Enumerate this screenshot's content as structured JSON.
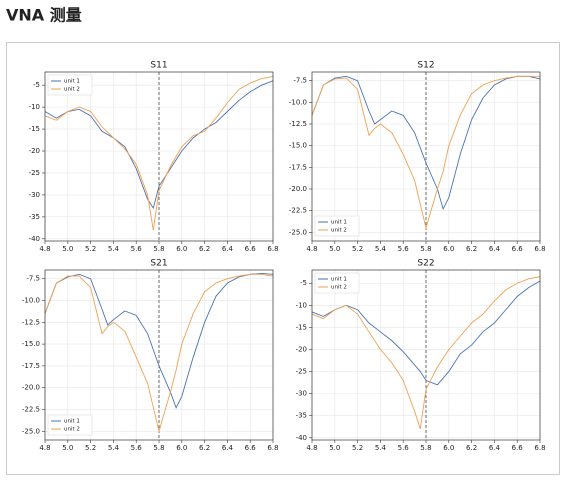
{
  "title": "VNA 测量",
  "chart_data": [
    {
      "type": "line",
      "title": "S11",
      "legend": "upper left",
      "grid": true,
      "vline": 5.8,
      "xlim": [
        4.8,
        6.8
      ],
      "ylim": [
        -40.5,
        -2
      ],
      "xticks": [
        4.8,
        {
          "value": 5,
          "label": "5.0"
        },
        5.2,
        5.4,
        5.6,
        5.8,
        {
          "value": 6,
          "label": "6.0"
        },
        6.2,
        6.4,
        6.6,
        6.8
      ],
      "yticks": [
        -5,
        -10,
        -15,
        -20,
        -25,
        -30,
        -35,
        -40
      ],
      "x": [
        4.8,
        4.9,
        5.0,
        5.1,
        5.2,
        5.3,
        5.4,
        5.5,
        5.6,
        5.7,
        5.75,
        5.8,
        5.9,
        6.0,
        6.1,
        6.2,
        6.3,
        6.4,
        6.5,
        6.6,
        6.7,
        6.8
      ],
      "series": [
        {
          "name": "unit 1",
          "color": "#4c72b0",
          "values": [
            -11,
            -12.5,
            -11,
            -10.5,
            -12,
            -15.5,
            -17,
            -19,
            -24,
            -31,
            -33,
            -28,
            -24,
            -20,
            -17,
            -15,
            -13.5,
            -11,
            -8.5,
            -6.5,
            -5,
            -4
          ]
        },
        {
          "name": "unit 2",
          "color": "#f0a050",
          "values": [
            -12,
            -13,
            -11,
            -10,
            -11,
            -14.5,
            -17,
            -19.5,
            -23,
            -30,
            -38,
            -29,
            -23.5,
            -19,
            -16.5,
            -15.5,
            -12.5,
            -9,
            -6,
            -4.5,
            -3.5,
            -3
          ]
        }
      ]
    },
    {
      "type": "line",
      "title": "S12",
      "legend": "lower left",
      "grid": true,
      "vline": 5.8,
      "xlim": [
        4.8,
        6.8
      ],
      "ylim": [
        -26,
        -6.5
      ],
      "xticks": [
        4.8,
        {
          "value": 5,
          "label": "5.0"
        },
        5.2,
        5.4,
        5.6,
        5.8,
        {
          "value": 6,
          "label": "6.0"
        },
        6.2,
        6.4,
        6.6,
        6.8
      ],
      "yticks": [
        -7.5,
        {
          "value": -10,
          "label": "-10.0"
        },
        -12.5,
        {
          "value": -15,
          "label": "-15.0"
        },
        -17.5,
        {
          "value": -20,
          "label": "-20.0"
        },
        -22.5,
        {
          "value": -25,
          "label": "-25.0"
        }
      ],
      "x": [
        4.8,
        4.9,
        5.0,
        5.1,
        5.2,
        5.3,
        5.35,
        5.4,
        5.5,
        5.6,
        5.7,
        5.8,
        5.9,
        5.95,
        6.0,
        6.1,
        6.2,
        6.3,
        6.4,
        6.5,
        6.6,
        6.7,
        6.8
      ],
      "series": [
        {
          "name": "unit 1",
          "color": "#4c72b0",
          "values": [
            -11.5,
            -8,
            -7.2,
            -7,
            -7.5,
            -11,
            -12.5,
            -12,
            -11,
            -11.5,
            -13.5,
            -17,
            -20,
            -22.3,
            -21,
            -16,
            -12,
            -9.5,
            -8,
            -7.3,
            -7,
            -7,
            -7.3
          ]
        },
        {
          "name": "unit 2",
          "color": "#f0a050",
          "values": [
            -11.5,
            -8,
            -7.3,
            -7.2,
            -8.5,
            -13.8,
            -13,
            -12.5,
            -13.5,
            -16,
            -19,
            -24.5,
            -20,
            -18,
            -15,
            -11.5,
            -9,
            -8,
            -7.5,
            -7.2,
            -7,
            -7,
            -7
          ]
        }
      ]
    },
    {
      "type": "line",
      "title": "S21",
      "legend": "lower left",
      "grid": true,
      "vline": 5.8,
      "xlim": [
        4.8,
        6.8
      ],
      "ylim": [
        -26,
        -6.5
      ],
      "xticks": [
        4.8,
        {
          "value": 5,
          "label": "5.0"
        },
        5.2,
        5.4,
        5.6,
        5.8,
        {
          "value": 6,
          "label": "6.0"
        },
        6.2,
        6.4,
        6.6,
        6.8
      ],
      "yticks": [
        -7.5,
        {
          "value": -10,
          "label": "-10.0"
        },
        -12.5,
        {
          "value": -15,
          "label": "-15.0"
        },
        -17.5,
        {
          "value": -20,
          "label": "-20.0"
        },
        -22.5,
        {
          "value": -25,
          "label": "-25.0"
        }
      ],
      "x": [
        4.8,
        4.9,
        5.0,
        5.1,
        5.2,
        5.3,
        5.35,
        5.4,
        5.5,
        5.6,
        5.7,
        5.8,
        5.9,
        5.95,
        6.0,
        6.1,
        6.2,
        6.3,
        6.4,
        6.5,
        6.6,
        6.7,
        6.8
      ],
      "series": [
        {
          "name": "unit 1",
          "color": "#4c72b0",
          "values": [
            -11.5,
            -8,
            -7.3,
            -7,
            -7.5,
            -11,
            -12.8,
            -12.2,
            -11.2,
            -11.7,
            -13.8,
            -17.5,
            -20.5,
            -22.3,
            -21,
            -16.5,
            -12.5,
            -9.5,
            -8,
            -7.3,
            -7,
            -6.9,
            -7
          ]
        },
        {
          "name": "unit 2",
          "color": "#f0a050",
          "values": [
            -11.5,
            -8,
            -7.2,
            -7.2,
            -8.5,
            -13.8,
            -13,
            -12.5,
            -13.5,
            -16.5,
            -19.5,
            -25,
            -20.5,
            -18,
            -15,
            -11.5,
            -9,
            -8,
            -7.5,
            -7.2,
            -7,
            -7,
            -7.2
          ]
        }
      ]
    },
    {
      "type": "line",
      "title": "S22",
      "legend": "upper left",
      "grid": true,
      "vline": 5.8,
      "xlim": [
        4.8,
        6.8
      ],
      "ylim": [
        -40.5,
        -2
      ],
      "xticks": [
        4.8,
        {
          "value": 5,
          "label": "5.0"
        },
        5.2,
        5.4,
        5.6,
        5.8,
        {
          "value": 6,
          "label": "6.0"
        },
        6.2,
        6.4,
        6.6,
        6.8
      ],
      "yticks": [
        -5,
        -10,
        -15,
        -20,
        -25,
        -30,
        -35,
        -40
      ],
      "x": [
        4.8,
        4.9,
        5.0,
        5.1,
        5.2,
        5.3,
        5.4,
        5.5,
        5.6,
        5.7,
        5.75,
        5.8,
        5.9,
        6.0,
        6.1,
        6.2,
        6.3,
        6.4,
        6.5,
        6.6,
        6.7,
        6.8
      ],
      "series": [
        {
          "name": "unit 1",
          "color": "#4c72b0",
          "values": [
            -11.5,
            -12.5,
            -11,
            -10,
            -11,
            -14,
            -16,
            -18,
            -20.5,
            -23.5,
            -25,
            -27,
            -28,
            -25,
            -21,
            -19,
            -16,
            -14,
            -11,
            -8,
            -6,
            -4.5
          ]
        },
        {
          "name": "unit 2",
          "color": "#f0a050",
          "values": [
            -12,
            -13,
            -11,
            -10,
            -12,
            -16,
            -20,
            -23,
            -27,
            -34,
            -38,
            -29,
            -24,
            -20,
            -17,
            -14,
            -12,
            -9,
            -6.5,
            -5,
            -4,
            -3.5
          ]
        }
      ]
    }
  ]
}
